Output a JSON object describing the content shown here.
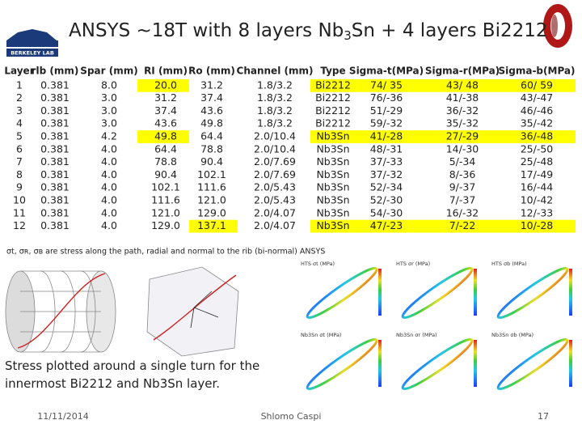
{
  "logo": {
    "text": "BERKELEY LAB"
  },
  "header": {
    "title_parts": [
      "ANSYS ~18T with 8 layers Nb",
      "3",
      "Sn + 4 layers Bi2212"
    ]
  },
  "table": {
    "columns": [
      "Layer",
      "rlb (mm)",
      "Spar (mm)",
      "RI (mm)",
      "Ro (mm)",
      "Channel (mm)",
      "Type",
      "Sigma-t(MPa)",
      "Sigma-r(MPa)",
      "Sigma-b(MPa)"
    ],
    "rows": [
      [
        "1",
        "0.381",
        "8.0",
        "20.0",
        "31.2",
        "1.8/3.2",
        "Bi2212",
        "74/ 35",
        "43/ 48",
        "60/ 59"
      ],
      [
        "2",
        "0.381",
        "3.0",
        "31.2",
        "37.4",
        "1.8/3.2",
        "Bi2212",
        "76/-36",
        "41/-38",
        "43/-47"
      ],
      [
        "3",
        "0.381",
        "3.0",
        "37.4",
        "43.6",
        "1.8/3.2",
        "Bi2212",
        "51/-29",
        "36/-32",
        "46/-46"
      ],
      [
        "4",
        "0.381",
        "3.0",
        "43.6",
        "49.8",
        "1.8/3.2",
        "Bi2212",
        "59/-32",
        "35/-32",
        "35/-42"
      ],
      [
        "5",
        "0.381",
        "4.2",
        "49.8",
        "64.4",
        "2.0/10.4",
        "Nb3Sn",
        "41/-28",
        "27/-29",
        "36/-48"
      ],
      [
        "6",
        "0.381",
        "4.0",
        "64.4",
        "78.8",
        "2.0/10.4",
        "Nb3Sn",
        "48/-31",
        "14/-30",
        "25/-50"
      ],
      [
        "7",
        "0.381",
        "4.0",
        "78.8",
        "90.4",
        "2.0/7.69",
        "Nb3Sn",
        "37/-33",
        "5/-34",
        "25/-48"
      ],
      [
        "8",
        "0.381",
        "4.0",
        "90.4",
        "102.1",
        "2.0/7.69",
        "Nb3Sn",
        "37/-32",
        "8/-36",
        "17/-49"
      ],
      [
        "9",
        "0.381",
        "4.0",
        "102.1",
        "111.6",
        "2.0/5.43",
        "Nb3Sn",
        "52/-34",
        "9/-37",
        "16/-44"
      ],
      [
        "10",
        "0.381",
        "4.0",
        "111.6",
        "121.0",
        "2.0/5.43",
        "Nb3Sn",
        "52/-30",
        "7/-37",
        "10/-42"
      ],
      [
        "11",
        "0.381",
        "4.0",
        "121.0",
        "129.0",
        "2.0/4.07",
        "Nb3Sn",
        "54/-30",
        "16/-32",
        "12/-33"
      ],
      [
        "12",
        "0.381",
        "4.0",
        "129.0",
        "137.1",
        "2.0/4.07",
        "Nb3Sn",
        "47/-23",
        "7/-22",
        "10/-28"
      ]
    ]
  },
  "note": "σt, σʀ, σʙ are stress along the path, radial and normal to the rib (bi-normal) ANSYS",
  "plots": {
    "titles": [
      "HTS σt (MPa)",
      "HTS σr (MPa)",
      "HTS σb (MPa)",
      "Nb3Sn σt (MPa)",
      "Nb3Sn σr (MPa)",
      "Nb3Sn σb (MPa)"
    ]
  },
  "caption": "Stress plotted around a single turn for the innermost Bi2212 and Nb3Sn layer.",
  "footer": {
    "date": "11/11/2014",
    "author": "Shlomo Caspi",
    "page": "17"
  }
}
